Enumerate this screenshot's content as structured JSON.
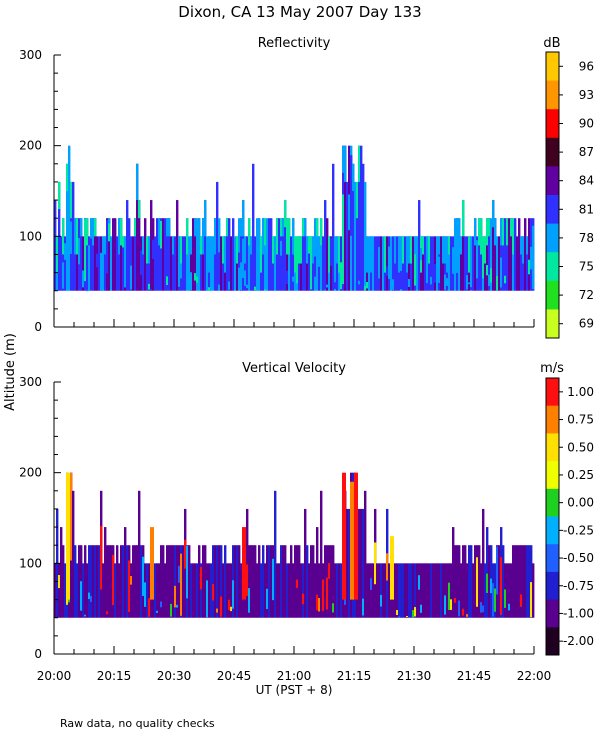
{
  "figure": {
    "title": "Dixon, CA 13 May 2007  Day 133",
    "ylabel": "Altitude (m)",
    "xlabel": "UT  (PST + 8)",
    "footnote": "Raw data, no quality checks"
  },
  "chart_data": [
    {
      "type": "heatmap",
      "title": "Reflectivity",
      "colorbar_unit": "dB",
      "colorbar_labels": [
        "96",
        "93",
        "90",
        "87",
        "84",
        "81",
        "78",
        "75",
        "72",
        "69"
      ],
      "colorbar_colors": [
        "#ffc800",
        "#ff9600",
        "#ff0000",
        "#400020",
        "#6000a0",
        "#3030ff",
        "#00a0ff",
        "#00e8a0",
        "#20e020",
        "#c8ff20"
      ],
      "x_ticks": [
        "20:00",
        "20:15",
        "20:30",
        "20:45",
        "21:00",
        "21:15",
        "21:30",
        "21:45",
        "22:00"
      ],
      "y_ticks": [
        0,
        100,
        200,
        300
      ],
      "ylim": [
        0,
        300
      ],
      "xlim_minutes_from_2000UT": [
        0,
        120
      ],
      "column_base_altitude_m": 40,
      "typical_top_altitude_m": [
        100,
        120
      ],
      "max_spike_altitude_m": 200
    },
    {
      "type": "heatmap",
      "title": "Vertical Velocity",
      "colorbar_unit": "m/s",
      "colorbar_labels": [
        "1.00",
        "0.75",
        "0.50",
        "0.25",
        "0.00",
        "-0.25",
        "-0.50",
        "-0.75",
        "-1.00",
        "-2.00"
      ],
      "colorbar_colors": [
        "#ff1010",
        "#ff8000",
        "#ffe000",
        "#f0ff00",
        "#20d020",
        "#00b0ff",
        "#2060ff",
        "#2020d0",
        "#5a0090",
        "#200020"
      ],
      "x_ticks": [
        "20:00",
        "20:15",
        "20:30",
        "20:45",
        "21:00",
        "21:15",
        "21:30",
        "21:45",
        "22:00"
      ],
      "y_ticks": [
        0,
        100,
        200,
        300
      ],
      "ylim": [
        0,
        300
      ],
      "xlim_minutes_from_2000UT": [
        0,
        120
      ],
      "column_base_altitude_m": 40,
      "typical_top_altitude_m": [
        100,
        120
      ],
      "max_spike_altitude_m": 200
    }
  ]
}
